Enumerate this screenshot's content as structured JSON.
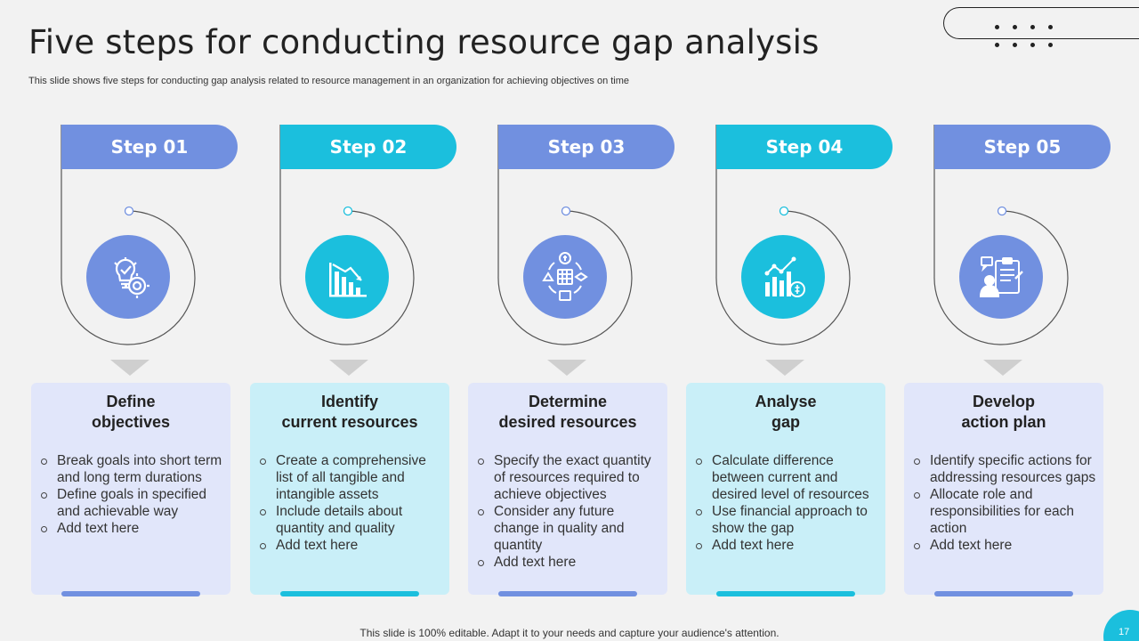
{
  "title": "Five steps for conducting resource gap analysis",
  "subtitle": "This slide shows five steps for conducting gap analysis related to resource management in an organization for achieving objectives on time",
  "steps": [
    {
      "label": "Step 01",
      "theme": "blue",
      "icon": "lightbulb-target-icon",
      "title_lines": [
        "Define",
        "objectives"
      ],
      "bullets": [
        "Break goals into short term and long term durations",
        "Define goals in specified and achievable way",
        "Add text here"
      ]
    },
    {
      "label": "Step 02",
      "theme": "cyan",
      "icon": "bar-chart-decline-icon",
      "title_lines": [
        "Identify",
        "current resources"
      ],
      "bullets": [
        "Create a comprehensive list of all tangible and intangible assets",
        "Include details about quantity and quality",
        "Add text here"
      ]
    },
    {
      "label": "Step 03",
      "theme": "blue",
      "icon": "resource-cycle-icon",
      "title_lines": [
        "Determine",
        "desired resources"
      ],
      "bullets": [
        "Specify the exact quantity of resources required to achieve objectives",
        "Consider any future change in quality and quantity",
        "Add text here"
      ]
    },
    {
      "label": "Step 04",
      "theme": "cyan",
      "icon": "growth-chart-coins-icon",
      "title_lines": [
        "Analyse",
        "gap"
      ],
      "bullets": [
        "Calculate difference between current and desired level of resources",
        "Use financial approach to show the gap",
        "Add text here"
      ]
    },
    {
      "label": "Step 05",
      "theme": "blue",
      "icon": "clipboard-person-icon",
      "title_lines": [
        "Develop",
        "action plan"
      ],
      "bullets": [
        "Identify specific actions for addressing resources gaps",
        "Allocate role and responsibilities for each action",
        "Add text here"
      ]
    }
  ],
  "footer": "This slide is 100% editable. Adapt it to your needs and capture your audience's attention.",
  "page_number": "17",
  "colors": {
    "blue": "#7190e0",
    "cyan": "#1bbfdd",
    "blue_card": "#e1e6fa",
    "cyan_card": "#c9eff8"
  }
}
